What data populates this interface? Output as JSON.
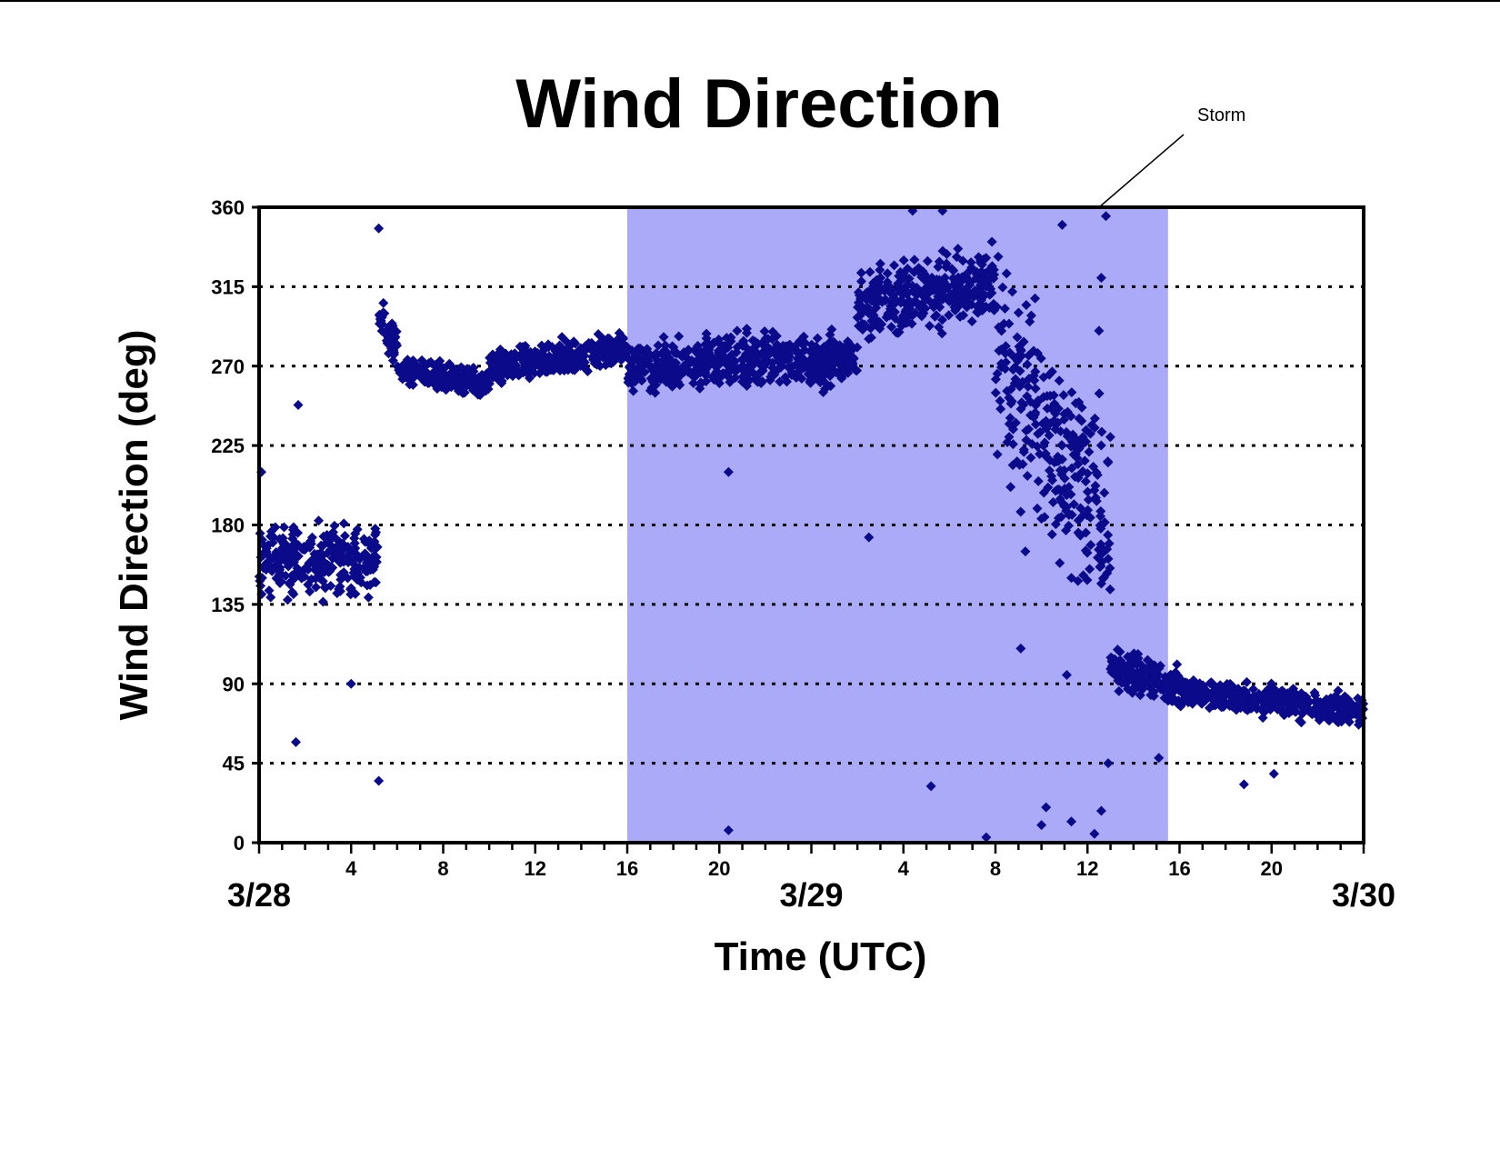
{
  "chart_data": {
    "type": "scatter",
    "title": "Wind Direction",
    "xlabel": "Time (UTC)",
    "ylabel": "Wind Direction (deg)",
    "x_unit": "hours UTC from 3/28 00:00",
    "ylim": [
      0,
      360
    ],
    "xlim": [
      0,
      48
    ],
    "y_ticks": [
      0,
      45,
      90,
      135,
      180,
      225,
      270,
      315,
      360
    ],
    "y_tick_labels": [
      "0",
      "45",
      "90",
      "135",
      "180",
      "225",
      "270",
      "315",
      "360"
    ],
    "grid": {
      "horizontal": true,
      "style": "dotted",
      "lines": [
        45,
        90,
        135,
        180,
        225,
        270,
        315
      ]
    },
    "hour_ticks": [
      {
        "x": 4,
        "label": "4"
      },
      {
        "x": 8,
        "label": "8"
      },
      {
        "x": 12,
        "label": "12"
      },
      {
        "x": 16,
        "label": "16"
      },
      {
        "x": 20,
        "label": "20"
      },
      {
        "x": 28,
        "label": "4"
      },
      {
        "x": 32,
        "label": "8"
      },
      {
        "x": 36,
        "label": "12"
      },
      {
        "x": 40,
        "label": "16"
      },
      {
        "x": 44,
        "label": "20"
      }
    ],
    "date_ticks": [
      {
        "x": 0,
        "label": "3/28"
      },
      {
        "x": 24,
        "label": "3/29"
      },
      {
        "x": 48,
        "label": "3/30"
      }
    ],
    "storm_period": {
      "x_start": 16,
      "x_end": 39.5,
      "label": "Storm",
      "color": "#aaaaf8"
    },
    "marker_color": "#0a0a8a",
    "trend_segments": [
      {
        "x_start": 0,
        "x_end": 5.2,
        "mean_start": 160,
        "mean_end": 160,
        "spread": 28
      },
      {
        "x_start": 5.2,
        "x_end": 6,
        "mean_start": 300,
        "mean_end": 280,
        "spread": 14
      },
      {
        "x_start": 6,
        "x_end": 10,
        "mean_start": 268,
        "mean_end": 260,
        "spread": 10
      },
      {
        "x_start": 10,
        "x_end": 16,
        "mean_start": 268,
        "mean_end": 280,
        "spread": 14
      },
      {
        "x_start": 16,
        "x_end": 26,
        "mean_start": 270,
        "mean_end": 275,
        "spread": 22
      },
      {
        "x_start": 26,
        "x_end": 32,
        "mean_start": 305,
        "mean_end": 318,
        "spread": 28
      },
      {
        "x_start": 32,
        "x_end": 37,
        "mean_start": 270,
        "mean_end": 180,
        "spread": 80
      },
      {
        "x_start": 37,
        "x_end": 40,
        "mean_start": 100,
        "mean_end": 88,
        "spread": 16
      },
      {
        "x_start": 40,
        "x_end": 48,
        "mean_start": 85,
        "mean_end": 75,
        "spread": 12
      }
    ],
    "outliers": [
      {
        "x": 0.1,
        "y": 210
      },
      {
        "x": 1.6,
        "y": 57
      },
      {
        "x": 1.7,
        "y": 248
      },
      {
        "x": 5.2,
        "y": 348
      },
      {
        "x": 5.2,
        "y": 35
      },
      {
        "x": 4,
        "y": 90
      },
      {
        "x": 20.4,
        "y": 210
      },
      {
        "x": 20.4,
        "y": 7
      },
      {
        "x": 26.5,
        "y": 173
      },
      {
        "x": 29.2,
        "y": 32
      },
      {
        "x": 31.6,
        "y": 3
      },
      {
        "x": 34,
        "y": 10
      },
      {
        "x": 35.3,
        "y": 12
      },
      {
        "x": 36.3,
        "y": 5
      },
      {
        "x": 36.6,
        "y": 18
      },
      {
        "x": 34.2,
        "y": 20
      },
      {
        "x": 42.8,
        "y": 33
      },
      {
        "x": 44.1,
        "y": 39
      },
      {
        "x": 28.4,
        "y": 358
      },
      {
        "x": 29.7,
        "y": 358
      },
      {
        "x": 36.8,
        "y": 355
      },
      {
        "x": 34.9,
        "y": 350
      },
      {
        "x": 36.6,
        "y": 320
      },
      {
        "x": 36.5,
        "y": 290
      },
      {
        "x": 33.3,
        "y": 165
      },
      {
        "x": 35.1,
        "y": 95
      },
      {
        "x": 36.9,
        "y": 45
      },
      {
        "x": 39.1,
        "y": 48
      },
      {
        "x": 33.1,
        "y": 110
      },
      {
        "x": 34.7,
        "y": 200
      },
      {
        "x": 35.3,
        "y": 150
      }
    ]
  }
}
